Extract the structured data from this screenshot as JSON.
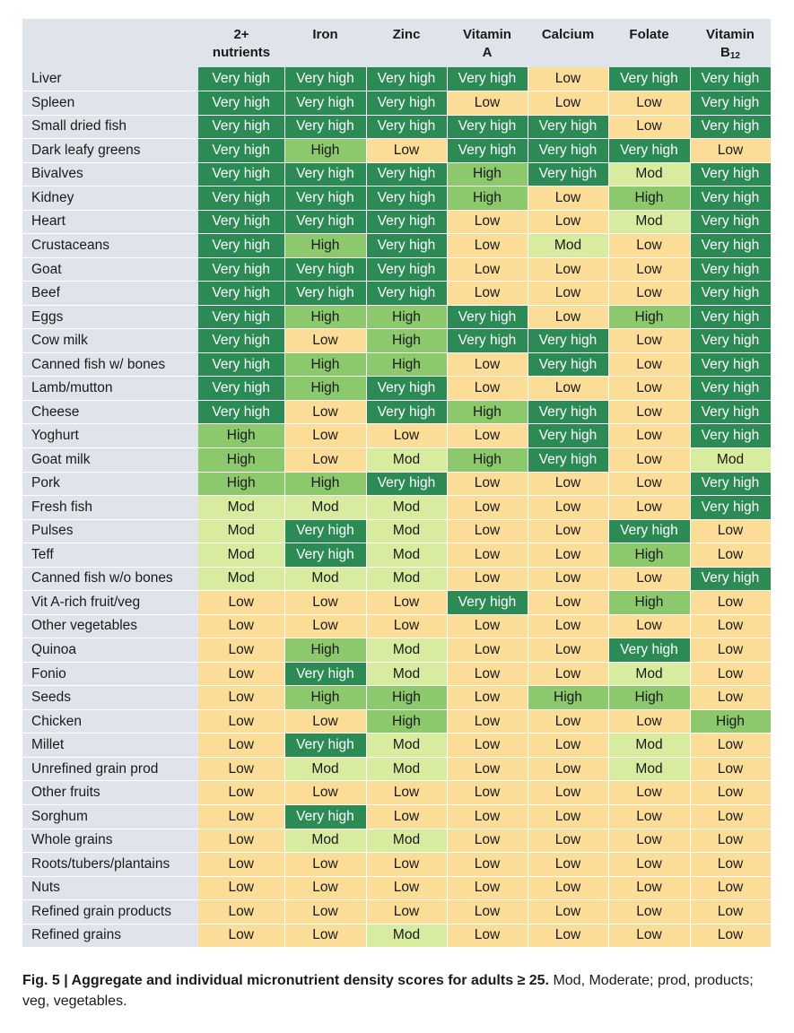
{
  "chart_data": {
    "type": "table",
    "columns": [
      "2+ nutrients",
      "Iron",
      "Zinc",
      "Vitamin A",
      "Calcium",
      "Folate",
      "Vitamin B12"
    ],
    "header_lines": [
      [
        "2+",
        "nutrients"
      ],
      [
        "Iron"
      ],
      [
        "Zinc"
      ],
      [
        "Vitamin",
        "A"
      ],
      [
        "Calcium"
      ],
      [
        "Folate"
      ],
      [
        "Vitamin",
        "B",
        "12"
      ]
    ],
    "levels": {
      "Very high": "#2c8b55",
      "High": "#8cc86c",
      "Mod": "#d7ec9f",
      "Low": "#fbdd97"
    },
    "rows": [
      {
        "food": "Liver",
        "values": [
          "Very high",
          "Very high",
          "Very high",
          "Very high",
          "Low",
          "Very high",
          "Very high"
        ]
      },
      {
        "food": "Spleen",
        "values": [
          "Very high",
          "Very high",
          "Very high",
          "Low",
          "Low",
          "Low",
          "Very high"
        ]
      },
      {
        "food": "Small dried fish",
        "values": [
          "Very high",
          "Very high",
          "Very high",
          "Very high",
          "Very high",
          "Low",
          "Very high"
        ]
      },
      {
        "food": "Dark leafy greens",
        "values": [
          "Very high",
          "High",
          "Low",
          "Very high",
          "Very high",
          "Very high",
          "Low"
        ]
      },
      {
        "food": "Bivalves",
        "values": [
          "Very high",
          "Very high",
          "Very high",
          "High",
          "Very high",
          "Mod",
          "Very high"
        ]
      },
      {
        "food": "Kidney",
        "values": [
          "Very high",
          "Very high",
          "Very high",
          "High",
          "Low",
          "High",
          "Very high"
        ]
      },
      {
        "food": "Heart",
        "values": [
          "Very high",
          "Very high",
          "Very high",
          "Low",
          "Low",
          "Mod",
          "Very high"
        ]
      },
      {
        "food": "Crustaceans",
        "values": [
          "Very high",
          "High",
          "Very high",
          "Low",
          "Mod",
          "Low",
          "Very high"
        ]
      },
      {
        "food": "Goat",
        "values": [
          "Very high",
          "Very high",
          "Very high",
          "Low",
          "Low",
          "Low",
          "Very high"
        ]
      },
      {
        "food": "Beef",
        "values": [
          "Very high",
          "Very high",
          "Very high",
          "Low",
          "Low",
          "Low",
          "Very high"
        ]
      },
      {
        "food": "Eggs",
        "values": [
          "Very high",
          "High",
          "High",
          "Very high",
          "Low",
          "High",
          "Very high"
        ]
      },
      {
        "food": "Cow milk",
        "values": [
          "Very high",
          "Low",
          "High",
          "Very high",
          "Very high",
          "Low",
          "Very high"
        ]
      },
      {
        "food": "Canned fish w/ bones",
        "values": [
          "Very high",
          "High",
          "High",
          "Low",
          "Very high",
          "Low",
          "Very high"
        ]
      },
      {
        "food": "Lamb/mutton",
        "values": [
          "Very high",
          "High",
          "Very high",
          "Low",
          "Low",
          "Low",
          "Very high"
        ]
      },
      {
        "food": "Cheese",
        "values": [
          "Very high",
          "Low",
          "Very high",
          "High",
          "Very high",
          "Low",
          "Very high"
        ]
      },
      {
        "food": "Yoghurt",
        "values": [
          "High",
          "Low",
          "Low",
          "Low",
          "Very high",
          "Low",
          "Very high"
        ]
      },
      {
        "food": "Goat milk",
        "values": [
          "High",
          "Low",
          "Mod",
          "High",
          "Very high",
          "Low",
          "Mod"
        ]
      },
      {
        "food": "Pork",
        "values": [
          "High",
          "High",
          "Very high",
          "Low",
          "Low",
          "Low",
          "Very high"
        ]
      },
      {
        "food": "Fresh fish",
        "values": [
          "Mod",
          "Mod",
          "Mod",
          "Low",
          "Low",
          "Low",
          "Very high"
        ]
      },
      {
        "food": "Pulses",
        "values": [
          "Mod",
          "Very high",
          "Mod",
          "Low",
          "Low",
          "Very high",
          "Low"
        ]
      },
      {
        "food": "Teff",
        "values": [
          "Mod",
          "Very high",
          "Mod",
          "Low",
          "Low",
          "High",
          "Low"
        ]
      },
      {
        "food": "Canned fish w/o bones",
        "values": [
          "Mod",
          "Mod",
          "Mod",
          "Low",
          "Low",
          "Low",
          "Very high"
        ]
      },
      {
        "food": "Vit A-rich fruit/veg",
        "values": [
          "Low",
          "Low",
          "Low",
          "Very high",
          "Low",
          "High",
          "Low"
        ]
      },
      {
        "food": "Other vegetables",
        "values": [
          "Low",
          "Low",
          "Low",
          "Low",
          "Low",
          "Low",
          "Low"
        ]
      },
      {
        "food": "Quinoa",
        "values": [
          "Low",
          "High",
          "Mod",
          "Low",
          "Low",
          "Very high",
          "Low"
        ]
      },
      {
        "food": "Fonio",
        "values": [
          "Low",
          "Very high",
          "Mod",
          "Low",
          "Low",
          "Mod",
          "Low"
        ]
      },
      {
        "food": "Seeds",
        "values": [
          "Low",
          "High",
          "High",
          "Low",
          "High",
          "High",
          "Low"
        ]
      },
      {
        "food": "Chicken",
        "values": [
          "Low",
          "Low",
          "High",
          "Low",
          "Low",
          "Low",
          "High"
        ]
      },
      {
        "food": "Millet",
        "values": [
          "Low",
          "Very high",
          "Mod",
          "Low",
          "Low",
          "Mod",
          "Low"
        ]
      },
      {
        "food": "Unrefined grain prod",
        "values": [
          "Low",
          "Mod",
          "Mod",
          "Low",
          "Low",
          "Mod",
          "Low"
        ]
      },
      {
        "food": "Other fruits",
        "values": [
          "Low",
          "Low",
          "Low",
          "Low",
          "Low",
          "Low",
          "Low"
        ]
      },
      {
        "food": "Sorghum",
        "values": [
          "Low",
          "Very high",
          "Low",
          "Low",
          "Low",
          "Low",
          "Low"
        ]
      },
      {
        "food": "Whole grains",
        "values": [
          "Low",
          "Mod",
          "Mod",
          "Low",
          "Low",
          "Low",
          "Low"
        ]
      },
      {
        "food": "Roots/tubers/plantains",
        "values": [
          "Low",
          "Low",
          "Low",
          "Low",
          "Low",
          "Low",
          "Low"
        ]
      },
      {
        "food": "Nuts",
        "values": [
          "Low",
          "Low",
          "Low",
          "Low",
          "Low",
          "Low",
          "Low"
        ]
      },
      {
        "food": "Refined grain products",
        "values": [
          "Low",
          "Low",
          "Low",
          "Low",
          "Low",
          "Low",
          "Low"
        ]
      },
      {
        "food": "Refined grains",
        "values": [
          "Low",
          "Low",
          "Mod",
          "Low",
          "Low",
          "Low",
          "Low"
        ]
      }
    ]
  },
  "caption": {
    "bold": "Fig. 5 | Aggregate and individual micronutrient density scores for adults ≥ 25.",
    "text": " Mod, Moderate; prod, products; veg, vegetables."
  }
}
